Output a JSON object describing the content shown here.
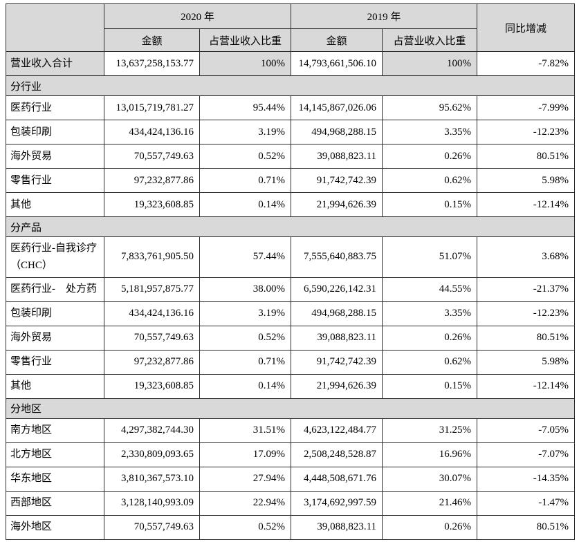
{
  "colors": {
    "shaded_cell_bg": "#d9d9d9",
    "data_cell_bg": "#ffffff",
    "border": "#2b2b2b",
    "text": "#000000"
  },
  "table": {
    "header": {
      "year_2020": "2020 年",
      "year_2019": "2019 年",
      "amount": "金额",
      "ratio": "占营业收入比重",
      "yoy": "同比增减"
    },
    "rows": [
      {
        "type": "total",
        "label": "营业收入合计",
        "a2020": "13,637,258,153.77",
        "r2020": "100%",
        "a2019": "14,793,661,506.10",
        "r2019": "100%",
        "yoy": "-7.82%"
      },
      {
        "type": "section",
        "label": "分行业"
      },
      {
        "type": "data",
        "label": "医药行业",
        "a2020": "13,015,719,781.27",
        "r2020": "95.44%",
        "a2019": "14,145,867,026.06",
        "r2019": "95.62%",
        "yoy": "-7.99%"
      },
      {
        "type": "data",
        "label": "包装印刷",
        "a2020": "434,424,136.16",
        "r2020": "3.19%",
        "a2019": "494,968,288.15",
        "r2019": "3.35%",
        "yoy": "-12.23%"
      },
      {
        "type": "data",
        "label": "海外贸易",
        "a2020": "70,557,749.63",
        "r2020": "0.52%",
        "a2019": "39,088,823.11",
        "r2019": "0.26%",
        "yoy": "80.51%"
      },
      {
        "type": "data",
        "label": "零售行业",
        "a2020": "97,232,877.86",
        "r2020": "0.71%",
        "a2019": "91,742,742.39",
        "r2019": "0.62%",
        "yoy": "5.98%"
      },
      {
        "type": "data",
        "label": "其他",
        "a2020": "19,323,608.85",
        "r2020": "0.14%",
        "a2019": "21,994,626.39",
        "r2019": "0.15%",
        "yoy": "-12.14%"
      },
      {
        "type": "section",
        "label": "分产品"
      },
      {
        "type": "data",
        "label": "医药行业-自我诊疗（CHC）",
        "a2020": "7,833,761,905.50",
        "r2020": "57.44%",
        "a2019": "7,555,640,883.75",
        "r2019": "51.07%",
        "yoy": "3.68%"
      },
      {
        "type": "data",
        "label": "医药行业-　处方药",
        "a2020": "5,181,957,875.77",
        "r2020": "38.00%",
        "a2019": "6,590,226,142.31",
        "r2019": "44.55%",
        "yoy": "-21.37%"
      },
      {
        "type": "data",
        "label": "包装印刷",
        "a2020": "434,424,136.16",
        "r2020": "3.19%",
        "a2019": "494,968,288.15",
        "r2019": "3.35%",
        "yoy": "-12.23%"
      },
      {
        "type": "data",
        "label": "海外贸易",
        "a2020": "70,557,749.63",
        "r2020": "0.52%",
        "a2019": "39,088,823.11",
        "r2019": "0.26%",
        "yoy": "80.51%"
      },
      {
        "type": "data",
        "label": "零售行业",
        "a2020": "97,232,877.86",
        "r2020": "0.71%",
        "a2019": "91,742,742.39",
        "r2019": "0.62%",
        "yoy": "5.98%"
      },
      {
        "type": "data",
        "label": "其他",
        "a2020": "19,323,608.85",
        "r2020": "0.14%",
        "a2019": "21,994,626.39",
        "r2019": "0.15%",
        "yoy": "-12.14%"
      },
      {
        "type": "section",
        "label": "分地区"
      },
      {
        "type": "data",
        "label": "南方地区",
        "a2020": "4,297,382,744.30",
        "r2020": "31.51%",
        "a2019": "4,623,122,484.77",
        "r2019": "31.25%",
        "yoy": "-7.05%"
      },
      {
        "type": "data",
        "label": "北方地区",
        "a2020": "2,330,809,093.65",
        "r2020": "17.09%",
        "a2019": "2,508,248,528.87",
        "r2019": "16.96%",
        "yoy": "-7.07%"
      },
      {
        "type": "data",
        "label": "华东地区",
        "a2020": "3,810,367,573.10",
        "r2020": "27.94%",
        "a2019": "4,448,508,671.76",
        "r2019": "30.07%",
        "yoy": "-14.35%"
      },
      {
        "type": "data",
        "label": "西部地区",
        "a2020": "3,128,140,993.09",
        "r2020": "22.94%",
        "a2019": "3,174,692,997.59",
        "r2019": "21.46%",
        "yoy": "-1.47%"
      },
      {
        "type": "data",
        "label": "海外地区",
        "a2020": "70,557,749.63",
        "r2020": "0.52%",
        "a2019": "39,088,823.11",
        "r2019": "0.26%",
        "yoy": "80.51%"
      }
    ]
  }
}
